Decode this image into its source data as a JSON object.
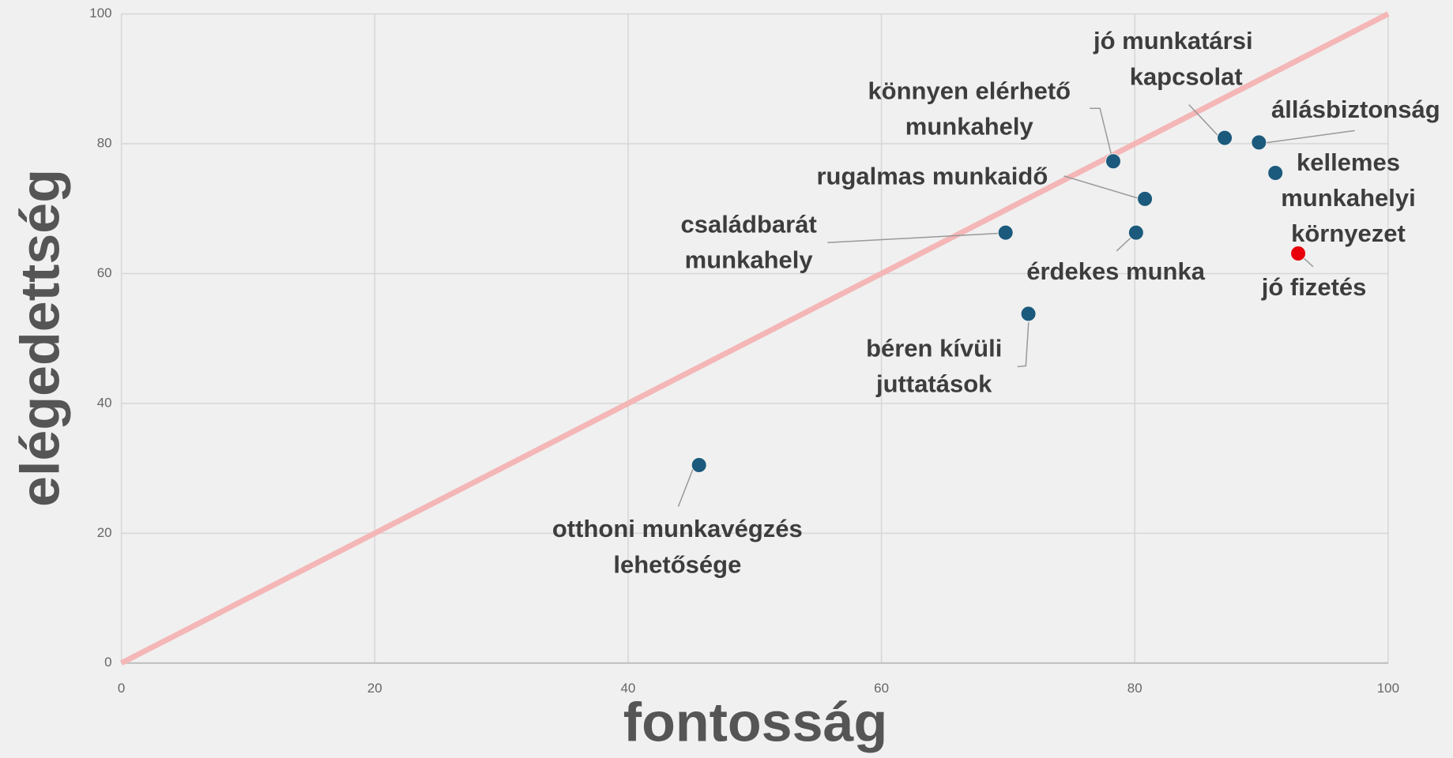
{
  "chart_data": {
    "type": "scatter",
    "xlabel": "fontosság",
    "ylabel": "elégedettség",
    "x": [
      45.6,
      71.6,
      69.8,
      80.1,
      80.8,
      78.3,
      87.1,
      89.8,
      91.1,
      92.9
    ],
    "y": [
      30.5,
      53.8,
      66.3,
      66.3,
      71.5,
      77.3,
      80.9,
      80.2,
      75.5,
      63.1
    ],
    "labels": [
      [
        "otthoni munkavégzés",
        "lehetősége"
      ],
      [
        "béren kívüli",
        "juttatások"
      ],
      [
        "családbarát",
        "munkahely"
      ],
      [
        "érdekes munka"
      ],
      [
        "rugalmas munkaidő"
      ],
      [
        "könnyen elérhető",
        "munkahely"
      ],
      [
        "jó munkatársi",
        "kapcsolat"
      ],
      [
        "állásbiztonság"
      ],
      [
        "kellemes",
        "munkahelyi",
        "környezet"
      ],
      [
        "jó fizetés"
      ]
    ],
    "point_colors": [
      "#1b5a7c",
      "#1b5a7c",
      "#1b5a7c",
      "#1b5a7c",
      "#1b5a7c",
      "#1b5a7c",
      "#1b5a7c",
      "#1b5a7c",
      "#1b5a7c",
      "#e8000b"
    ],
    "reference_line": {
      "x": [
        0,
        100
      ],
      "y": [
        0,
        100
      ],
      "color": "#f4b6b6"
    },
    "xlim": [
      0,
      100
    ],
    "ylim": [
      0,
      100
    ],
    "xticks": [
      0,
      20,
      40,
      60,
      80,
      100
    ],
    "yticks": [
      0,
      20,
      40,
      60,
      80,
      100
    ],
    "grid": true
  }
}
